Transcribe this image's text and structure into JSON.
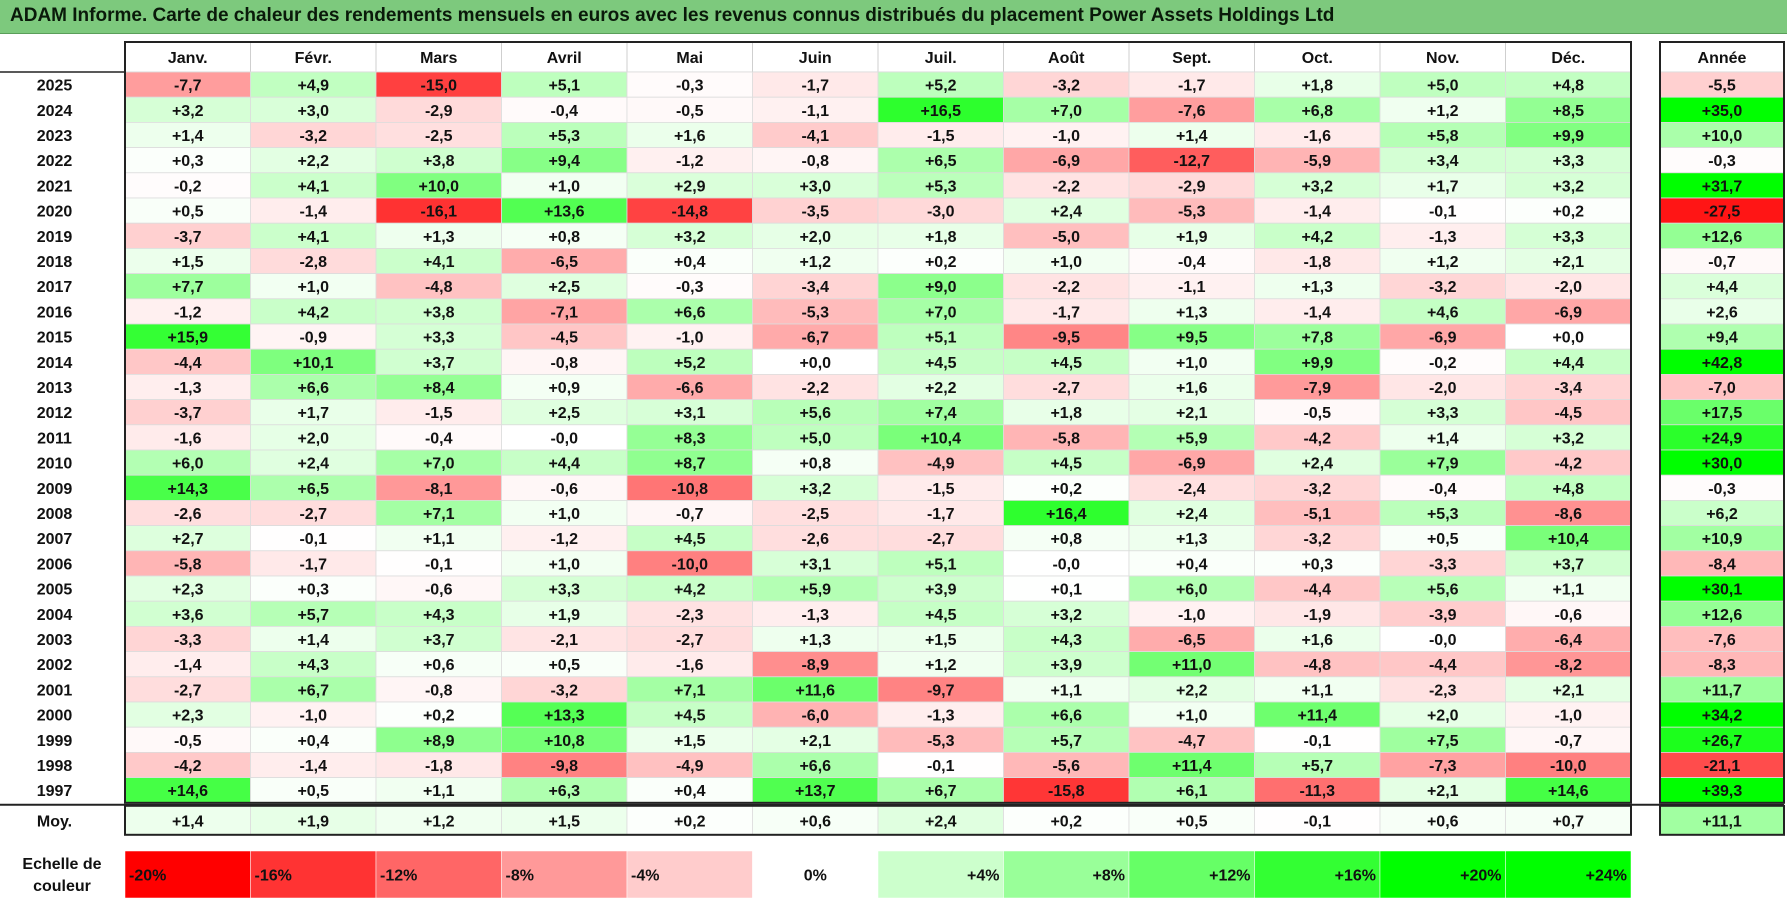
{
  "title": "ADAM Informe. Carte de chaleur des rendements mensuels en euros avec les revenus connus distribués du placement Power Assets Holdings Ltd",
  "chart_data": {
    "type": "heatmap",
    "columns": [
      "Janv.",
      "Févr.",
      "Mars",
      "Avril",
      "Mai",
      "Juin",
      "Juil.",
      "Août",
      "Sept.",
      "Oct.",
      "Nov.",
      "Déc."
    ],
    "year_column_label": "Année",
    "rows": [
      {
        "year": "2025",
        "values": [
          "-7,7",
          "+4,9",
          "-15,0",
          "+5,1",
          "-0,3",
          "-1,7",
          "+5,2",
          "-3,2",
          "-1,7",
          "+1,8",
          "+5,0",
          "+4,8"
        ],
        "annual": "-5,5"
      },
      {
        "year": "2024",
        "values": [
          "+3,2",
          "+3,0",
          "-2,9",
          "-0,4",
          "-0,5",
          "-1,1",
          "+16,5",
          "+7,0",
          "-7,6",
          "+6,8",
          "+1,2",
          "+8,5"
        ],
        "annual": "+35,0"
      },
      {
        "year": "2023",
        "values": [
          "+1,4",
          "-3,2",
          "-2,5",
          "+5,3",
          "+1,6",
          "-4,1",
          "-1,5",
          "-1,0",
          "+1,4",
          "-1,6",
          "+5,8",
          "+9,9"
        ],
        "annual": "+10,0"
      },
      {
        "year": "2022",
        "values": [
          "+0,3",
          "+2,2",
          "+3,8",
          "+9,4",
          "-1,2",
          "-0,8",
          "+6,5",
          "-6,9",
          "-12,7",
          "-5,9",
          "+3,4",
          "+3,3"
        ],
        "annual": "-0,3"
      },
      {
        "year": "2021",
        "values": [
          "-0,2",
          "+4,1",
          "+10,0",
          "+1,0",
          "+2,9",
          "+3,0",
          "+5,3",
          "-2,2",
          "-2,9",
          "+3,2",
          "+1,7",
          "+3,2"
        ],
        "annual": "+31,7"
      },
      {
        "year": "2020",
        "values": [
          "+0,5",
          "-1,4",
          "-16,1",
          "+13,6",
          "-14,8",
          "-3,5",
          "-3,0",
          "+2,4",
          "-5,3",
          "-1,4",
          "-0,1",
          "+0,2"
        ],
        "annual": "-27,5"
      },
      {
        "year": "2019",
        "values": [
          "-3,7",
          "+4,1",
          "+1,3",
          "+0,8",
          "+3,2",
          "+2,0",
          "+1,8",
          "-5,0",
          "+1,9",
          "+4,2",
          "-1,3",
          "+3,3"
        ],
        "annual": "+12,6"
      },
      {
        "year": "2018",
        "values": [
          "+1,5",
          "-2,8",
          "+4,1",
          "-6,5",
          "+0,4",
          "+1,2",
          "+0,2",
          "+1,0",
          "-0,4",
          "-1,8",
          "+1,2",
          "+2,1"
        ],
        "annual": "-0,7"
      },
      {
        "year": "2017",
        "values": [
          "+7,7",
          "+1,0",
          "-4,8",
          "+2,5",
          "-0,3",
          "-3,4",
          "+9,0",
          "-2,2",
          "-1,1",
          "+1,3",
          "-3,2",
          "-2,0"
        ],
        "annual": "+4,4"
      },
      {
        "year": "2016",
        "values": [
          "-1,2",
          "+4,2",
          "+3,8",
          "-7,1",
          "+6,6",
          "-5,3",
          "+7,0",
          "-1,7",
          "+1,3",
          "-1,4",
          "+4,6",
          "-6,9"
        ],
        "annual": "+2,6"
      },
      {
        "year": "2015",
        "values": [
          "+15,9",
          "-0,9",
          "+3,3",
          "-4,5",
          "-1,0",
          "-6,7",
          "+5,1",
          "-9,5",
          "+9,5",
          "+7,8",
          "-6,9",
          "+0,0"
        ],
        "annual": "+9,4"
      },
      {
        "year": "2014",
        "values": [
          "-4,4",
          "+10,1",
          "+3,7",
          "-0,8",
          "+5,2",
          "+0,0",
          "+4,5",
          "+4,5",
          "+1,0",
          "+9,9",
          "-0,2",
          "+4,4"
        ],
        "annual": "+42,8"
      },
      {
        "year": "2013",
        "values": [
          "-1,3",
          "+6,6",
          "+8,4",
          "+0,9",
          "-6,6",
          "-2,2",
          "+2,2",
          "-2,7",
          "+1,6",
          "-7,9",
          "-2,0",
          "-3,4"
        ],
        "annual": "-7,0"
      },
      {
        "year": "2012",
        "values": [
          "-3,7",
          "+1,7",
          "-1,5",
          "+2,5",
          "+3,1",
          "+5,6",
          "+7,4",
          "+1,8",
          "+2,1",
          "-0,5",
          "+3,3",
          "-4,5"
        ],
        "annual": "+17,5"
      },
      {
        "year": "2011",
        "values": [
          "-1,6",
          "+2,0",
          "-0,4",
          "-0,0",
          "+8,3",
          "+5,0",
          "+10,4",
          "-5,8",
          "+5,9",
          "-4,2",
          "+1,4",
          "+3,2"
        ],
        "annual": "+24,9"
      },
      {
        "year": "2010",
        "values": [
          "+6,0",
          "+2,4",
          "+7,0",
          "+4,4",
          "+8,7",
          "+0,8",
          "-4,9",
          "+4,5",
          "-6,9",
          "+2,4",
          "+7,9",
          "-4,2"
        ],
        "annual": "+30,0"
      },
      {
        "year": "2009",
        "values": [
          "+14,3",
          "+6,5",
          "-8,1",
          "-0,6",
          "-10,8",
          "+3,2",
          "-1,5",
          "+0,2",
          "-2,4",
          "-3,2",
          "-0,4",
          "+4,8"
        ],
        "annual": "-0,3"
      },
      {
        "year": "2008",
        "values": [
          "-2,6",
          "-2,7",
          "+7,1",
          "+1,0",
          "-0,7",
          "-2,5",
          "-1,7",
          "+16,4",
          "+2,4",
          "-5,1",
          "+5,3",
          "-8,6"
        ],
        "annual": "+6,2"
      },
      {
        "year": "2007",
        "values": [
          "+2,7",
          "-0,1",
          "+1,1",
          "-1,2",
          "+4,5",
          "-2,6",
          "-2,7",
          "+0,8",
          "+1,3",
          "-3,2",
          "+0,5",
          "+10,4"
        ],
        "annual": "+10,9"
      },
      {
        "year": "2006",
        "values": [
          "-5,8",
          "-1,7",
          "-0,1",
          "+1,0",
          "-10,0",
          "+3,1",
          "+5,1",
          "-0,0",
          "+0,4",
          "+0,3",
          "-3,3",
          "+3,7"
        ],
        "annual": "-8,4"
      },
      {
        "year": "2005",
        "values": [
          "+2,3",
          "+0,3",
          "-0,6",
          "+3,3",
          "+4,2",
          "+5,9",
          "+3,9",
          "+0,1",
          "+6,0",
          "-4,4",
          "+5,6",
          "+1,1"
        ],
        "annual": "+30,1"
      },
      {
        "year": "2004",
        "values": [
          "+3,6",
          "+5,7",
          "+4,3",
          "+1,9",
          "-2,3",
          "-1,3",
          "+4,5",
          "+3,2",
          "-1,0",
          "-1,9",
          "-3,9",
          "-0,6"
        ],
        "annual": "+12,6"
      },
      {
        "year": "2003",
        "values": [
          "-3,3",
          "+1,4",
          "+3,7",
          "-2,1",
          "-2,7",
          "+1,3",
          "+1,5",
          "+4,3",
          "-6,5",
          "+1,6",
          "-0,0",
          "-6,4"
        ],
        "annual": "-7,6"
      },
      {
        "year": "2002",
        "values": [
          "-1,4",
          "+4,3",
          "+0,6",
          "+0,5",
          "-1,6",
          "-8,9",
          "+1,2",
          "+3,9",
          "+11,0",
          "-4,8",
          "-4,4",
          "-8,2"
        ],
        "annual": "-8,3"
      },
      {
        "year": "2001",
        "values": [
          "-2,7",
          "+6,7",
          "-0,8",
          "-3,2",
          "+7,1",
          "+11,6",
          "-9,7",
          "+1,1",
          "+2,2",
          "+1,1",
          "-2,3",
          "+2,1"
        ],
        "annual": "+11,7"
      },
      {
        "year": "2000",
        "values": [
          "+2,3",
          "-1,0",
          "+0,2",
          "+13,3",
          "+4,5",
          "-6,0",
          "-1,3",
          "+6,6",
          "+1,0",
          "+11,4",
          "+2,0",
          "-1,0"
        ],
        "annual": "+34,2"
      },
      {
        "year": "1999",
        "values": [
          "-0,5",
          "+0,4",
          "+8,9",
          "+10,8",
          "+1,5",
          "+2,1",
          "-5,3",
          "+5,7",
          "-4,7",
          "-0,1",
          "+7,5",
          "-0,7"
        ],
        "annual": "+26,7"
      },
      {
        "year": "1998",
        "values": [
          "-4,2",
          "-1,4",
          "-1,8",
          "-9,8",
          "-4,9",
          "+6,6",
          "-0,1",
          "-5,6",
          "+11,4",
          "+5,7",
          "-7,3",
          "-10,0"
        ],
        "annual": "-21,1"
      },
      {
        "year": "1997",
        "values": [
          "+14,6",
          "+0,5",
          "+1,1",
          "+6,3",
          "+0,4",
          "+13,7",
          "+6,7",
          "-15,8",
          "+6,1",
          "-11,3",
          "+2,1",
          "+14,6"
        ],
        "annual": "+39,3"
      }
    ],
    "average": {
      "label": "Moy.",
      "values": [
        "+1,4",
        "+1,9",
        "+1,2",
        "+1,5",
        "+0,2",
        "+0,6",
        "+2,4",
        "+0,2",
        "+0,5",
        "-0,1",
        "+0,6",
        "+0,7"
      ],
      "annual": "+11,1"
    },
    "scale": {
      "label_line1": "Echelle de",
      "label_line2": "couleur",
      "stops": [
        {
          "label": "-20%",
          "value": -20
        },
        {
          "label": "-16%",
          "value": -16
        },
        {
          "label": "-12%",
          "value": -12
        },
        {
          "label": "-8%",
          "value": -8
        },
        {
          "label": "-4%",
          "value": -4
        },
        {
          "label": "0%",
          "value": 0
        },
        {
          "label": "+4%",
          "value": 4
        },
        {
          "label": "+8%",
          "value": 8
        },
        {
          "label": "+12%",
          "value": 12
        },
        {
          "label": "+16%",
          "value": 16
        },
        {
          "label": "+20%",
          "value": 20
        },
        {
          "label": "+24%",
          "value": 24
        }
      ]
    },
    "colors": {
      "negative": "#ff0000",
      "neutral": "#ffffff",
      "positive": "#00ff00",
      "title_bg": "#7dc97d"
    }
  }
}
